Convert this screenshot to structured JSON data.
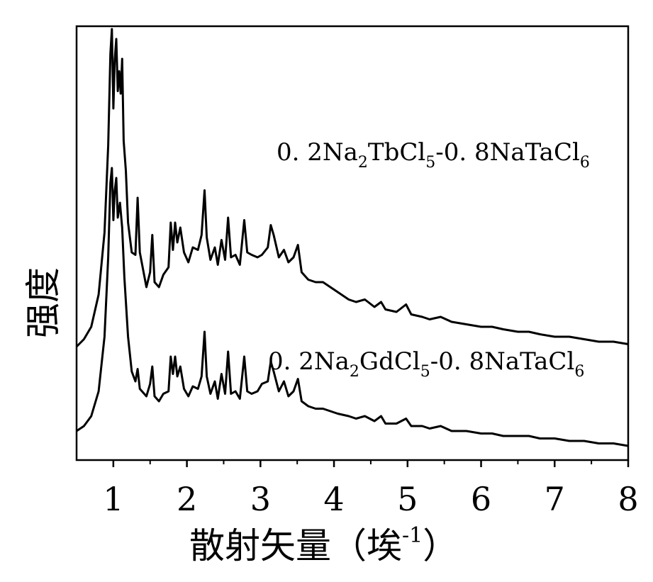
{
  "chart_data": {
    "type": "line",
    "xlabel_parts": {
      "main": "散射矢量（埃",
      "sup": "-1",
      "end": "）"
    },
    "ylabel": "强度",
    "xlim": [
      0.5,
      8
    ],
    "x_ticks": [
      "1",
      "2",
      "3",
      "4",
      "5",
      "6",
      "7",
      "8"
    ],
    "x_minor_ticks": [
      1.5,
      2.5,
      3.5,
      4.5,
      5.5,
      6.5,
      7.5
    ],
    "y_ticks": [],
    "grid": false,
    "legend": "none",
    "y_units": "arbitrary (offset stacked profiles)",
    "series": [
      {
        "label_parts": [
          "0. 2Na",
          "2",
          "TbCl",
          "5",
          "-0. 8NaTaCl",
          "6"
        ],
        "points": [
          [
            0.5,
            0.34
          ],
          [
            0.6,
            0.37
          ],
          [
            0.7,
            0.42
          ],
          [
            0.8,
            0.55
          ],
          [
            0.88,
            0.8
          ],
          [
            0.93,
            1.15
          ],
          [
            0.96,
            1.52
          ],
          [
            0.98,
            1.62
          ],
          [
            1.0,
            1.3
          ],
          [
            1.02,
            1.5
          ],
          [
            1.04,
            1.58
          ],
          [
            1.06,
            1.37
          ],
          [
            1.08,
            1.45
          ],
          [
            1.1,
            1.36
          ],
          [
            1.12,
            1.5
          ],
          [
            1.14,
            1.17
          ],
          [
            1.17,
            1.05
          ],
          [
            1.2,
            0.84
          ],
          [
            1.25,
            0.72
          ],
          [
            1.3,
            0.71
          ],
          [
            1.33,
            0.94
          ],
          [
            1.36,
            0.72
          ],
          [
            1.45,
            0.58
          ],
          [
            1.5,
            0.64
          ],
          [
            1.53,
            0.79
          ],
          [
            1.56,
            0.6
          ],
          [
            1.62,
            0.58
          ],
          [
            1.68,
            0.63
          ],
          [
            1.75,
            0.66
          ],
          [
            1.78,
            0.84
          ],
          [
            1.81,
            0.73
          ],
          [
            1.84,
            0.84
          ],
          [
            1.87,
            0.76
          ],
          [
            1.91,
            0.82
          ],
          [
            1.96,
            0.72
          ],
          [
            2.02,
            0.68
          ],
          [
            2.08,
            0.74
          ],
          [
            2.15,
            0.73
          ],
          [
            2.2,
            0.79
          ],
          [
            2.24,
            0.97
          ],
          [
            2.27,
            0.78
          ],
          [
            2.32,
            0.69
          ],
          [
            2.38,
            0.74
          ],
          [
            2.42,
            0.67
          ],
          [
            2.47,
            0.77
          ],
          [
            2.52,
            0.69
          ],
          [
            2.56,
            0.86
          ],
          [
            2.6,
            0.7
          ],
          [
            2.66,
            0.71
          ],
          [
            2.72,
            0.67
          ],
          [
            2.78,
            0.85
          ],
          [
            2.82,
            0.72
          ],
          [
            2.88,
            0.71
          ],
          [
            2.96,
            0.7
          ],
          [
            3.02,
            0.71
          ],
          [
            3.1,
            0.74
          ],
          [
            3.14,
            0.83
          ],
          [
            3.18,
            0.79
          ],
          [
            3.25,
            0.7
          ],
          [
            3.32,
            0.73
          ],
          [
            3.38,
            0.68
          ],
          [
            3.45,
            0.7
          ],
          [
            3.51,
            0.75
          ],
          [
            3.56,
            0.64
          ],
          [
            3.65,
            0.61
          ],
          [
            3.75,
            0.6
          ],
          [
            3.85,
            0.6
          ],
          [
            3.95,
            0.58
          ],
          [
            4.05,
            0.56
          ],
          [
            4.2,
            0.53
          ],
          [
            4.3,
            0.52
          ],
          [
            4.42,
            0.53
          ],
          [
            4.55,
            0.5
          ],
          [
            4.64,
            0.52
          ],
          [
            4.7,
            0.49
          ],
          [
            4.85,
            0.48
          ],
          [
            4.98,
            0.51
          ],
          [
            5.05,
            0.47
          ],
          [
            5.2,
            0.46
          ],
          [
            5.3,
            0.45
          ],
          [
            5.45,
            0.46
          ],
          [
            5.6,
            0.44
          ],
          [
            5.8,
            0.43
          ],
          [
            6.0,
            0.42
          ],
          [
            6.15,
            0.42
          ],
          [
            6.3,
            0.41
          ],
          [
            6.5,
            0.4
          ],
          [
            6.65,
            0.4
          ],
          [
            6.8,
            0.39
          ],
          [
            7.0,
            0.38
          ],
          [
            7.2,
            0.38
          ],
          [
            7.4,
            0.37
          ],
          [
            7.6,
            0.36
          ],
          [
            7.8,
            0.36
          ],
          [
            8.0,
            0.35
          ]
        ]
      },
      {
        "label_parts": [
          "0. 2Na",
          "2",
          "GdCl",
          "5",
          "-0. 8NaTaCl",
          "6"
        ],
        "points": [
          [
            0.5,
            0.0
          ],
          [
            0.6,
            0.02
          ],
          [
            0.7,
            0.06
          ],
          [
            0.8,
            0.16
          ],
          [
            0.88,
            0.38
          ],
          [
            0.93,
            0.7
          ],
          [
            0.96,
            1.0
          ],
          [
            0.98,
            1.06
          ],
          [
            1.0,
            0.85
          ],
          [
            1.02,
            0.97
          ],
          [
            1.04,
            1.02
          ],
          [
            1.06,
            0.86
          ],
          [
            1.09,
            0.92
          ],
          [
            1.12,
            0.82
          ],
          [
            1.15,
            0.62
          ],
          [
            1.2,
            0.38
          ],
          [
            1.25,
            0.24
          ],
          [
            1.3,
            0.2
          ],
          [
            1.33,
            0.25
          ],
          [
            1.36,
            0.17
          ],
          [
            1.45,
            0.14
          ],
          [
            1.5,
            0.19
          ],
          [
            1.53,
            0.26
          ],
          [
            1.56,
            0.14
          ],
          [
            1.62,
            0.12
          ],
          [
            1.68,
            0.15
          ],
          [
            1.75,
            0.16
          ],
          [
            1.78,
            0.3
          ],
          [
            1.81,
            0.23
          ],
          [
            1.84,
            0.3
          ],
          [
            1.87,
            0.22
          ],
          [
            1.91,
            0.26
          ],
          [
            1.96,
            0.17
          ],
          [
            2.02,
            0.14
          ],
          [
            2.08,
            0.18
          ],
          [
            2.15,
            0.17
          ],
          [
            2.2,
            0.22
          ],
          [
            2.24,
            0.4
          ],
          [
            2.27,
            0.22
          ],
          [
            2.32,
            0.15
          ],
          [
            2.38,
            0.2
          ],
          [
            2.42,
            0.13
          ],
          [
            2.47,
            0.23
          ],
          [
            2.52,
            0.15
          ],
          [
            2.56,
            0.32
          ],
          [
            2.6,
            0.15
          ],
          [
            2.66,
            0.16
          ],
          [
            2.72,
            0.13
          ],
          [
            2.78,
            0.3
          ],
          [
            2.82,
            0.16
          ],
          [
            2.88,
            0.15
          ],
          [
            2.96,
            0.16
          ],
          [
            3.02,
            0.19
          ],
          [
            3.1,
            0.2
          ],
          [
            3.14,
            0.28
          ],
          [
            3.18,
            0.24
          ],
          [
            3.25,
            0.16
          ],
          [
            3.32,
            0.2
          ],
          [
            3.38,
            0.14
          ],
          [
            3.45,
            0.16
          ],
          [
            3.51,
            0.21
          ],
          [
            3.56,
            0.12
          ],
          [
            3.65,
            0.1
          ],
          [
            3.75,
            0.09
          ],
          [
            3.85,
            0.09
          ],
          [
            3.95,
            0.08
          ],
          [
            4.05,
            0.07
          ],
          [
            4.2,
            0.06
          ],
          [
            4.3,
            0.05
          ],
          [
            4.42,
            0.06
          ],
          [
            4.55,
            0.04
          ],
          [
            4.64,
            0.06
          ],
          [
            4.7,
            0.03
          ],
          [
            4.85,
            0.03
          ],
          [
            4.98,
            0.05
          ],
          [
            5.05,
            0.02
          ],
          [
            5.2,
            0.02
          ],
          [
            5.3,
            0.01
          ],
          [
            5.45,
            0.02
          ],
          [
            5.6,
            0.0
          ],
          [
            5.8,
            0.0
          ],
          [
            6.0,
            -0.01
          ],
          [
            6.15,
            -0.01
          ],
          [
            6.3,
            -0.02
          ],
          [
            6.5,
            -0.02
          ],
          [
            6.65,
            -0.02
          ],
          [
            6.8,
            -0.03
          ],
          [
            7.0,
            -0.03
          ],
          [
            7.2,
            -0.04
          ],
          [
            7.4,
            -0.04
          ],
          [
            7.6,
            -0.05
          ],
          [
            7.8,
            -0.05
          ],
          [
            8.0,
            -0.06
          ]
        ]
      }
    ]
  }
}
